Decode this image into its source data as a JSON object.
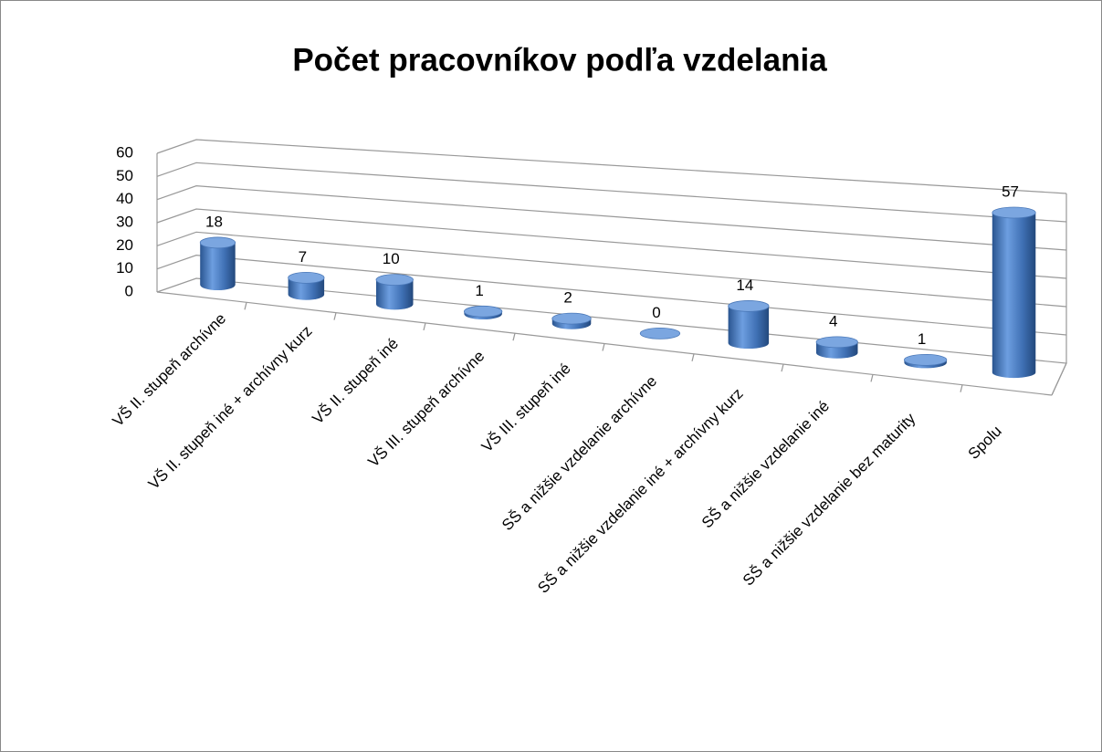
{
  "chart_data": {
    "type": "bar3d",
    "title": "Počet pracovníkov podľa vzdelania",
    "categories": [
      "VŠ II. stupeň archívne",
      "VŠ II. stupeň iné + archívny kurz",
      "VŠ II. stupeň iné",
      "VŠ III. stupeň archívne",
      "VŠ III. stupeň iné",
      "SŠ a nižšie vzdelanie archívne",
      "SŠ a nižšie vzdelanie iné + archívny kurz",
      "SŠ a nižšie vzdelanie iné",
      "SŠ a nižšie vzdelanie bez maturity",
      "Spolu"
    ],
    "values": [
      18,
      7,
      10,
      1,
      2,
      0,
      14,
      4,
      1,
      57
    ],
    "color": "#4f81bd",
    "ylim": [
      0,
      60
    ],
    "yticks": [
      0,
      10,
      20,
      30,
      40,
      50,
      60
    ],
    "grid": true
  }
}
